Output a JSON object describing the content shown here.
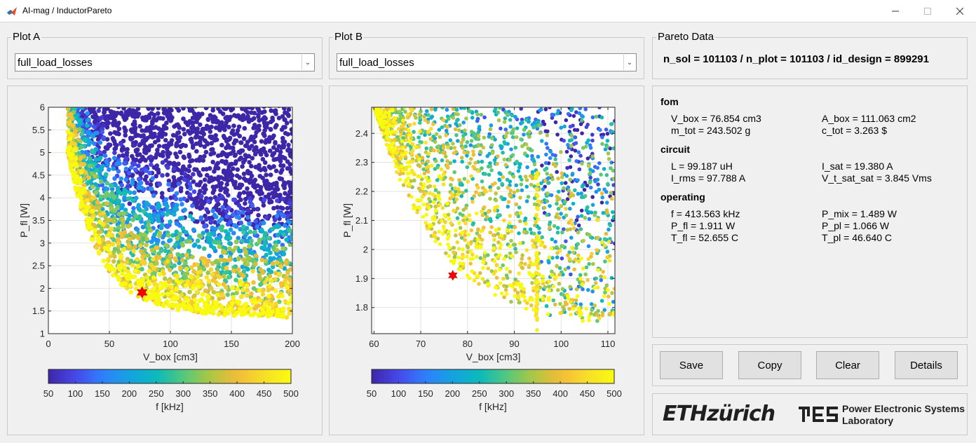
{
  "window": {
    "title": "AI-mag / InductorPareto",
    "minimize_icon": "minimize-icon",
    "maximize_icon": "maximize-icon",
    "close_icon": "close-icon"
  },
  "plot_a": {
    "label": "Plot A",
    "selected": "full_load_losses",
    "xlabel": "V_box [cm3]",
    "ylabel": "P_fl [W]",
    "xticks": [
      "0",
      "50",
      "100",
      "150",
      "200"
    ],
    "yticks": [
      "1",
      "1.5",
      "2",
      "2.5",
      "3",
      "3.5",
      "4",
      "4.5",
      "5",
      "5.5",
      "6"
    ],
    "colorbar_ticks": [
      "50",
      "100",
      "150",
      "200",
      "250",
      "300",
      "350",
      "400",
      "450",
      "500"
    ],
    "colorbar_label": "f [kHz]"
  },
  "plot_b": {
    "label": "Plot B",
    "selected": "full_load_losses",
    "xlabel": "V_box [cm3]",
    "ylabel": "P_fl [W]",
    "xticks": [
      "60",
      "70",
      "80",
      "90",
      "100",
      "110"
    ],
    "yticks": [
      "1.8",
      "1.9",
      "2",
      "2.1",
      "2.2",
      "2.3",
      "2.4"
    ],
    "colorbar_ticks": [
      "50",
      "100",
      "150",
      "200",
      "250",
      "300",
      "350",
      "400",
      "450",
      "500"
    ],
    "colorbar_label": "f [kHz]"
  },
  "chart_data": [
    {
      "type": "scatter",
      "title": "Plot A",
      "xlabel": "V_box [cm3]",
      "ylabel": "P_fl [W]",
      "xlim": [
        0,
        200
      ],
      "ylim": [
        1,
        6
      ],
      "color_variable": "f [kHz]",
      "color_range": [
        50,
        500
      ],
      "grid": true,
      "series": [
        {
          "x": [
            76.854
          ],
          "y": [
            1.911
          ],
          "marker": "hexagram",
          "color": "#ff0000"
        }
      ],
      "point_cloud_count": 101103
    },
    {
      "type": "scatter",
      "title": "Plot B",
      "xlabel": "V_box [cm3]",
      "ylabel": "P_fl [W]",
      "xlim": [
        59.5,
        111.5
      ],
      "ylim": [
        1.71,
        2.49
      ],
      "color_variable": "f [kHz]",
      "color_range": [
        50,
        500
      ],
      "grid": true,
      "series": [
        {
          "x": [
            76.854
          ],
          "y": [
            1.911
          ],
          "marker": "hexagram",
          "color": "#ff0000"
        }
      ]
    }
  ],
  "pareto": {
    "label": "Pareto Data",
    "header": "n_sol = 101103 / n_plot = 101103 / id_design = 899291",
    "fom": {
      "title": "fom",
      "v_box": "V_box = 76.854 cm3",
      "a_box": "A_box = 111.063 cm2",
      "m_tot": "m_tot = 243.502 g",
      "c_tot": "c_tot = 3.263 $"
    },
    "circuit": {
      "title": "circuit",
      "l": "L = 99.187 uH",
      "i_sat": "I_sat = 19.380 A",
      "i_rms": "I_rms = 97.788 A",
      "v_t": "V_t_sat_sat = 3.845 Vms"
    },
    "operating": {
      "title": "operating",
      "f": "f = 413.563 kHz",
      "p_mix": "P_mix = 1.489 W",
      "p_fl": "P_fl = 1.911 W",
      "p_pl": "P_pl = 1.066 W",
      "t_fl": "T_fl = 52.655 C",
      "t_pl": "T_pl = 46.640 C"
    }
  },
  "buttons": {
    "save": "Save",
    "copy": "Copy",
    "clear": "Clear",
    "details": "Details"
  },
  "logos": {
    "eth": "ETHzürich",
    "pes_mark": "PES",
    "pes_line1": "Power Electronic Systems",
    "pes_line2": "Laboratory"
  },
  "colors": {
    "accent_red": "#ff0000",
    "colormap": "parula"
  }
}
